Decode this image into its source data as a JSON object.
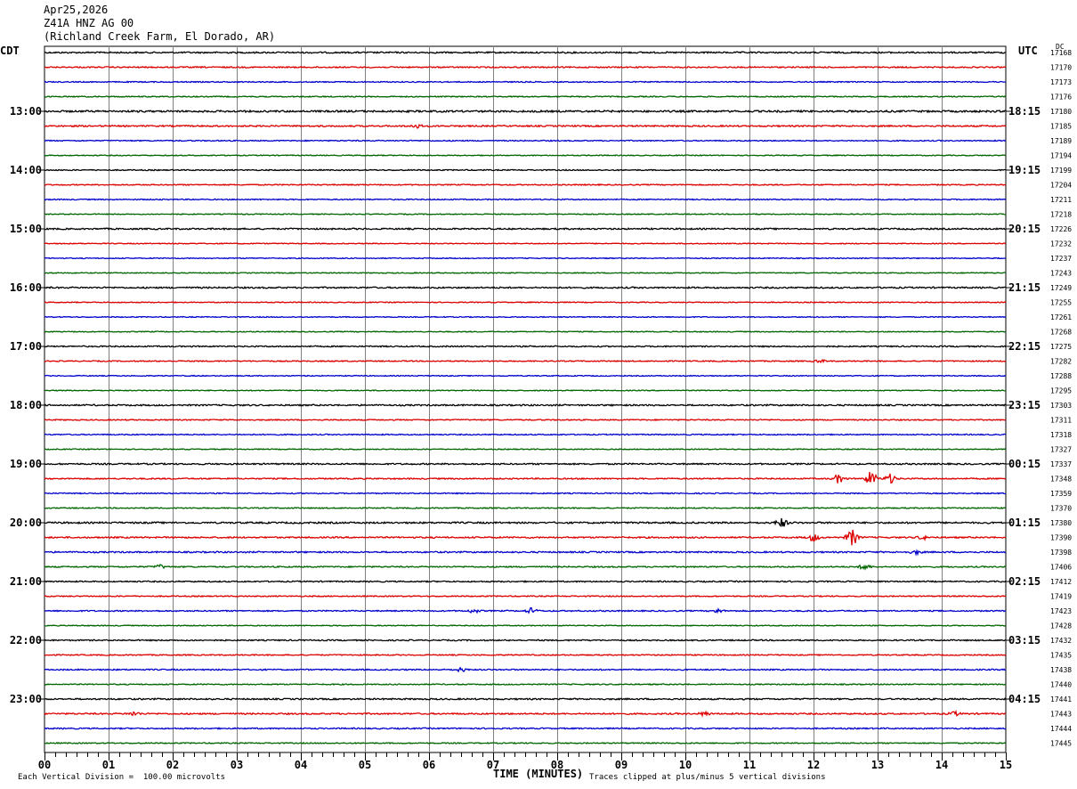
{
  "header": {
    "date": "Apr25,2026",
    "station": "Z41A HNZ AG 00",
    "location": "(Richland Creek Farm, El Dorado, AR)"
  },
  "left_timezone": "CDT",
  "right_timezone": "UTC",
  "right_column_label": "DC",
  "footer": {
    "left_note": "Each Vertical Division =  100.00 microvolts",
    "x_axis_label": "TIME (MINUTES)",
    "right_note": "Traces clipped at plus/minus 5 vertical divisions"
  },
  "colors": {
    "trace_cycle": [
      "#000000",
      "#dd0000",
      "#0000cc",
      "#006600"
    ],
    "grid": "#808080"
  },
  "chart_data": {
    "type": "line",
    "x_range": [
      0,
      15
    ],
    "x_ticks": [
      "00",
      "01",
      "02",
      "03",
      "04",
      "05",
      "06",
      "07",
      "08",
      "09",
      "10",
      "11",
      "12",
      "13",
      "14",
      "15"
    ],
    "left_hour_labels": [
      "13:00",
      "14:00",
      "15:00",
      "16:00",
      "17:00",
      "18:00",
      "19:00",
      "20:00",
      "21:00",
      "22:00",
      "23:00"
    ],
    "right_hour_labels": [
      "18:15",
      "19:15",
      "20:15",
      "21:15",
      "22:15",
      "23:15",
      "00:15",
      "01:15",
      "02:15",
      "03:15",
      "04:15"
    ],
    "dc_offsets": [
      "17168",
      "17170",
      "17173",
      "17176",
      "17180",
      "17185",
      "17189",
      "17194",
      "17199",
      "17204",
      "17211",
      "17218",
      "17226",
      "17232",
      "17237",
      "17243",
      "17249",
      "17255",
      "17261",
      "17268",
      "17275",
      "17282",
      "17288",
      "17295",
      "17303",
      "17311",
      "17318",
      "17327",
      "17337",
      "17348",
      "17359",
      "17370",
      "17380",
      "17390",
      "17398",
      "17406",
      "17412",
      "17419",
      "17423",
      "17428",
      "17432",
      "17435",
      "17438",
      "17440",
      "17441",
      "17443",
      "17444",
      "17445"
    ],
    "trace_noise": [
      0.8,
      0.7,
      0.6,
      0.6,
      1.0,
      0.8,
      0.6,
      0.5,
      0.6,
      0.6,
      0.6,
      0.5,
      0.8,
      0.5,
      0.5,
      0.5,
      0.8,
      0.5,
      0.5,
      0.5,
      0.7,
      0.6,
      0.5,
      0.5,
      0.8,
      0.6,
      0.6,
      0.5,
      0.8,
      0.7,
      0.6,
      0.6,
      0.9,
      0.8,
      0.8,
      0.7,
      0.7,
      0.6,
      0.7,
      0.5,
      0.7,
      0.6,
      0.7,
      0.6,
      0.8,
      0.8,
      0.7,
      0.6
    ],
    "events": [
      {
        "trace": 5,
        "minute": 5.8,
        "amplitude": 2
      },
      {
        "trace": 21,
        "minute": 12.1,
        "amplitude": 1.5
      },
      {
        "trace": 29,
        "minute": 12.4,
        "amplitude": 5
      },
      {
        "trace": 29,
        "minute": 12.9,
        "amplitude": 8
      },
      {
        "trace": 29,
        "minute": 13.2,
        "amplitude": 5
      },
      {
        "trace": 32,
        "minute": 11.5,
        "amplitude": 5
      },
      {
        "trace": 33,
        "minute": 12.0,
        "amplitude": 4
      },
      {
        "trace": 33,
        "minute": 12.6,
        "amplitude": 9
      },
      {
        "trace": 33,
        "minute": 13.7,
        "amplitude": 2
      },
      {
        "trace": 34,
        "minute": 13.6,
        "amplitude": 2
      },
      {
        "trace": 35,
        "minute": 1.8,
        "amplitude": 2
      },
      {
        "trace": 35,
        "minute": 12.8,
        "amplitude": 3
      },
      {
        "trace": 38,
        "minute": 6.7,
        "amplitude": 2
      },
      {
        "trace": 38,
        "minute": 7.6,
        "amplitude": 3
      },
      {
        "trace": 38,
        "minute": 10.5,
        "amplitude": 2
      },
      {
        "trace": 42,
        "minute": 6.5,
        "amplitude": 2
      },
      {
        "trace": 45,
        "minute": 1.4,
        "amplitude": 2
      },
      {
        "trace": 45,
        "minute": 10.3,
        "amplitude": 2
      },
      {
        "trace": 45,
        "minute": 14.2,
        "amplitude": 2
      }
    ]
  }
}
